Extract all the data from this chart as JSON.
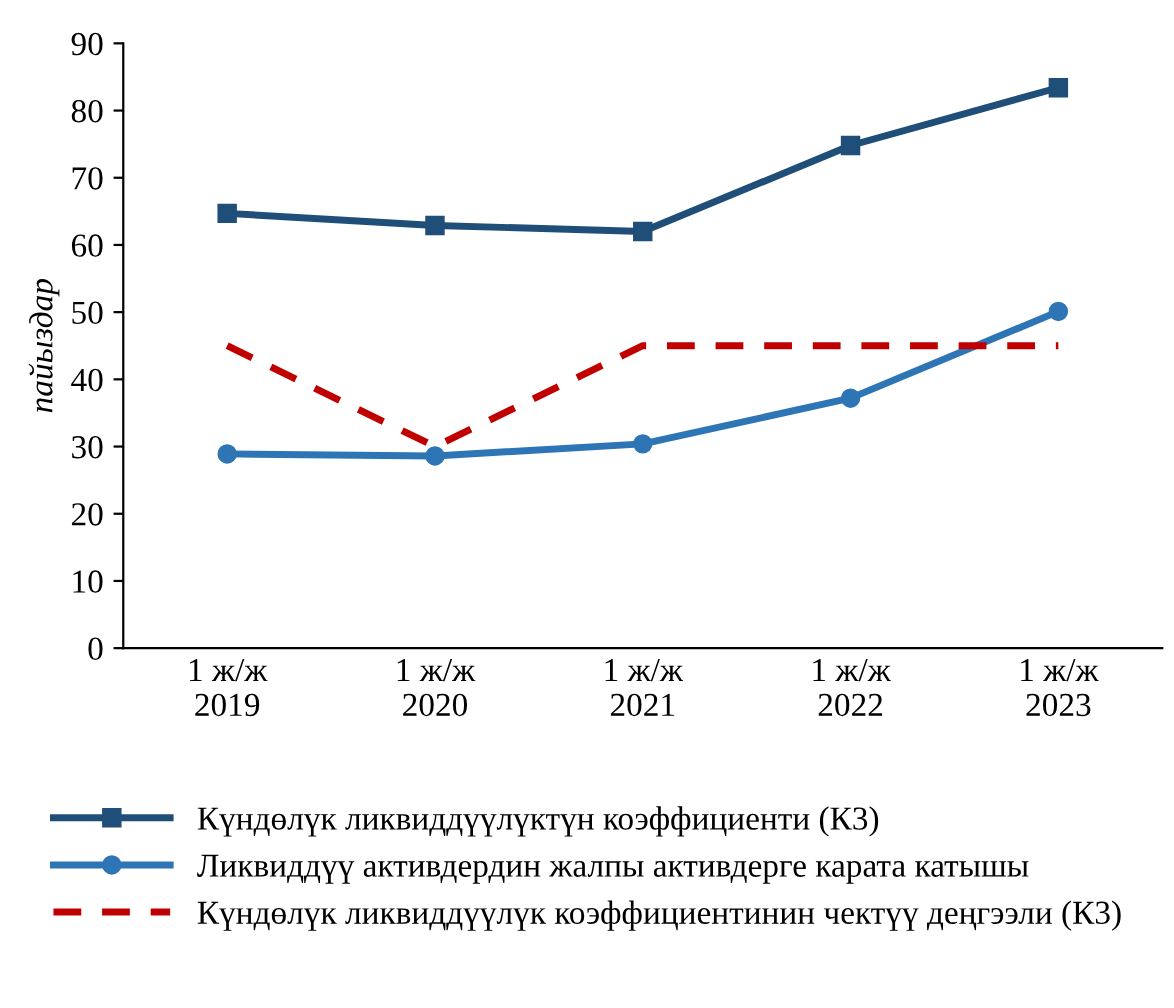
{
  "chart_data": {
    "type": "line",
    "ylabel": "пайыздар",
    "categories": [
      "1 ж/ж\n2019",
      "1 ж/ж\n2020",
      "1 ж/ж\n2021",
      "1 ж/ж\n2022",
      "1 ж/ж\n2023"
    ],
    "series": [
      {
        "name": "Күндөлүк ликвиддүүлүктүн коэффициенти (К3)",
        "color": "#1f4e79",
        "values": [
          64.7,
          62.9,
          62.0,
          74.8,
          83.4
        ],
        "marker": "square",
        "line_style": "solid"
      },
      {
        "name": "Ликвиддүү активдердин жалпы активдерге карата катышы",
        "color": "#2e75b6",
        "values": [
          28.9,
          28.6,
          30.4,
          37.2,
          50.1
        ],
        "marker": "circle",
        "line_style": "solid"
      },
      {
        "name": "Күндөлүк ликвиддүүлүк коэффициентинин чектүү деңгээли (К3)",
        "color": "#c00000",
        "values": [
          45,
          30,
          45,
          45,
          45
        ],
        "marker": "none",
        "line_style": "dashed"
      }
    ],
    "ylim": [
      0,
      90
    ],
    "yticks": [
      0,
      10,
      20,
      30,
      40,
      50,
      60,
      70,
      80,
      90
    ],
    "grid": false,
    "legend": "bottom"
  }
}
